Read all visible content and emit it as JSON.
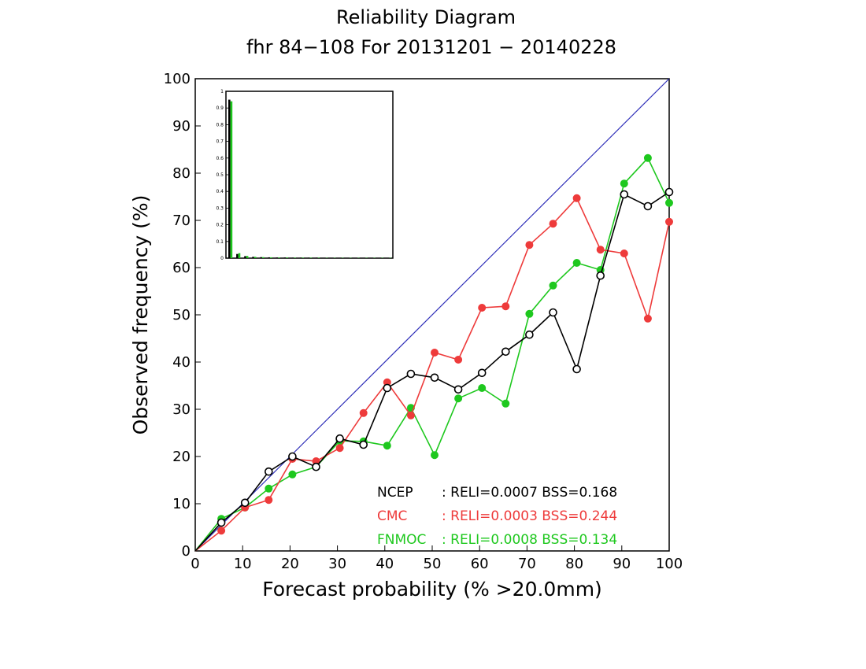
{
  "chart_data": {
    "type": "line",
    "title": "Reliability Diagram",
    "subtitle": "fhr 84−108 For 20131201 − 20140228",
    "xlabel": "Forecast probability (% >20.0mm)",
    "ylabel": "Observed frequency (%)",
    "xlim": [
      0,
      100
    ],
    "ylim": [
      0,
      100
    ],
    "x_ticks": [
      "0",
      "10",
      "20",
      "30",
      "40",
      "50",
      "60",
      "70",
      "80",
      "90",
      "100"
    ],
    "y_ticks": [
      "0",
      "10",
      "20",
      "30",
      "40",
      "50",
      "60",
      "70",
      "80",
      "90",
      "100"
    ],
    "grid": false,
    "legend_position": "bottom-right",
    "diagonal_color": "#2e2eb8",
    "series": [
      {
        "name": "NCEP",
        "color": "#000000",
        "marker": "open-circle",
        "stats": ": RELI=0.0007 BSS=0.168",
        "x": [
          0,
          5.5,
          10.5,
          15.5,
          20.5,
          25.5,
          30.5,
          35.5,
          40.5,
          45.5,
          50.5,
          55.5,
          60.5,
          65.5,
          70.5,
          75.5,
          80.5,
          85.5,
          90.5,
          95.5,
          100
        ],
        "y": [
          0,
          6,
          10.2,
          16.8,
          20,
          17.8,
          23.8,
          22.5,
          34.5,
          37.5,
          36.7,
          34.2,
          37.7,
          42.2,
          45.8,
          50.5,
          38.5,
          58.3,
          75.5,
          73,
          76
        ]
      },
      {
        "name": "CMC",
        "color": "#ee3b3b",
        "marker": "filled-circle",
        "stats": ": RELI=0.0003 BSS=0.244",
        "x": [
          0,
          5.5,
          10.5,
          15.5,
          20.5,
          25.5,
          30.5,
          35.5,
          40.5,
          45.5,
          50.5,
          55.5,
          60.5,
          65.5,
          70.5,
          75.5,
          80.5,
          85.5,
          90.5,
          95.5,
          100
        ],
        "y": [
          0,
          4.3,
          9.2,
          10.8,
          19.5,
          19,
          21.8,
          29.2,
          35.7,
          28.7,
          42,
          40.5,
          51.5,
          51.8,
          64.8,
          69.3,
          74.7,
          63.8,
          63,
          49.2,
          69.7
        ]
      },
      {
        "name": "FNMOC",
        "color": "#1ec81e",
        "marker": "filled-circle",
        "stats": ": RELI=0.0008 BSS=0.134",
        "x": [
          0,
          5.5,
          10.5,
          15.5,
          20.5,
          25.5,
          30.5,
          35.5,
          40.5,
          45.5,
          50.5,
          55.5,
          60.5,
          65.5,
          70.5,
          75.5,
          80.5,
          85.5,
          90.5,
          95.5,
          100
        ],
        "y": [
          0,
          6.8,
          9.2,
          13.2,
          16.2,
          17.8,
          23.3,
          23.2,
          22.3,
          30.3,
          20.3,
          32.3,
          34.5,
          31.2,
          50.2,
          56.2,
          61,
          59.5,
          77.8,
          83.2,
          73.7
        ]
      }
    ],
    "inset": {
      "type": "bar",
      "ylim": [
        0,
        1
      ],
      "y_ticks": [
        "0",
        "0.1",
        "0.2",
        "0.3",
        "0.4",
        "0.5",
        "0.6",
        "0.7",
        "0.8",
        "0.9",
        "1"
      ],
      "bins": [
        0,
        5,
        10,
        15,
        20,
        25,
        30,
        35,
        40,
        45,
        50,
        55,
        60,
        65,
        70,
        75,
        80,
        85,
        90,
        95,
        100
      ],
      "series": [
        {
          "name": "NCEP",
          "color": "#000000",
          "values": [
            0.95,
            0.025,
            0.012,
            0.008,
            0.006,
            0.005,
            0.004,
            0.004,
            0.003,
            0.003,
            0.003,
            0.003,
            0.002,
            0.002,
            0.002,
            0.002,
            0.002,
            0.002,
            0.002,
            0.002,
            0.002
          ]
        },
        {
          "name": "FNMOC",
          "color": "#1ec81e",
          "values": [
            0.94,
            0.03,
            0.013,
            0.008,
            0.006,
            0.005,
            0.004,
            0.004,
            0.003,
            0.003,
            0.003,
            0.003,
            0.002,
            0.002,
            0.002,
            0.002,
            0.002,
            0.002,
            0.002,
            0.002,
            0.002
          ]
        }
      ]
    }
  }
}
